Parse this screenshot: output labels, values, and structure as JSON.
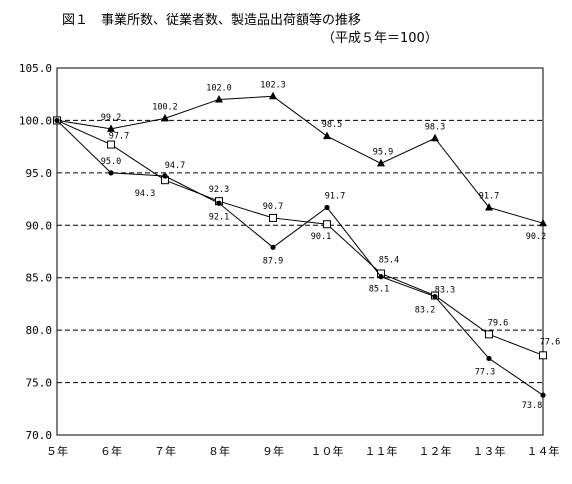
{
  "chart_data": {
    "type": "line",
    "title": "図１　事業所数、従業者数、製造品出荷額等の推移",
    "subtitle": "（平成５年＝100）",
    "categories": [
      "５年",
      "６年",
      "７年",
      "８年",
      "９年",
      "１０年",
      "１１年",
      "１２年",
      "１３年",
      "１４年"
    ],
    "yticks": [
      "70.0",
      "75.0",
      "80.0",
      "85.0",
      "90.0",
      "95.0",
      "100.0",
      "105.0"
    ],
    "ylim": [
      70,
      105
    ],
    "grid": "horizontal-dashed",
    "series": [
      {
        "marker": "triangle",
        "values": [
          100.0,
          99.2,
          100.2,
          102.0,
          102.3,
          98.5,
          95.9,
          98.3,
          91.7,
          90.2
        ],
        "labels": [
          "",
          "99.2",
          "100.2",
          "102.0",
          "102.3",
          "98.5",
          "95.9",
          "98.3",
          "91.7",
          "90.2"
        ]
      },
      {
        "marker": "square",
        "values": [
          100.0,
          97.7,
          94.3,
          92.3,
          90.7,
          90.1,
          85.4,
          83.3,
          79.6,
          77.6
        ],
        "labels": [
          "",
          "97.7",
          "94.3",
          "92.3",
          "90.7",
          "90.1",
          "85.4",
          "83.3",
          "79.6",
          "77.6"
        ]
      },
      {
        "marker": "dot",
        "values": [
          100.0,
          95.0,
          94.7,
          92.1,
          87.9,
          91.7,
          85.1,
          83.2,
          77.3,
          73.8
        ],
        "labels": [
          "",
          "95.0",
          "94.7",
          "92.1",
          "87.9",
          "91.7",
          "85.1",
          "83.2",
          "77.3",
          "73.8"
        ]
      }
    ],
    "colors": {
      "line": "#000000",
      "grid": "#000000",
      "background": "#ffffff"
    }
  }
}
